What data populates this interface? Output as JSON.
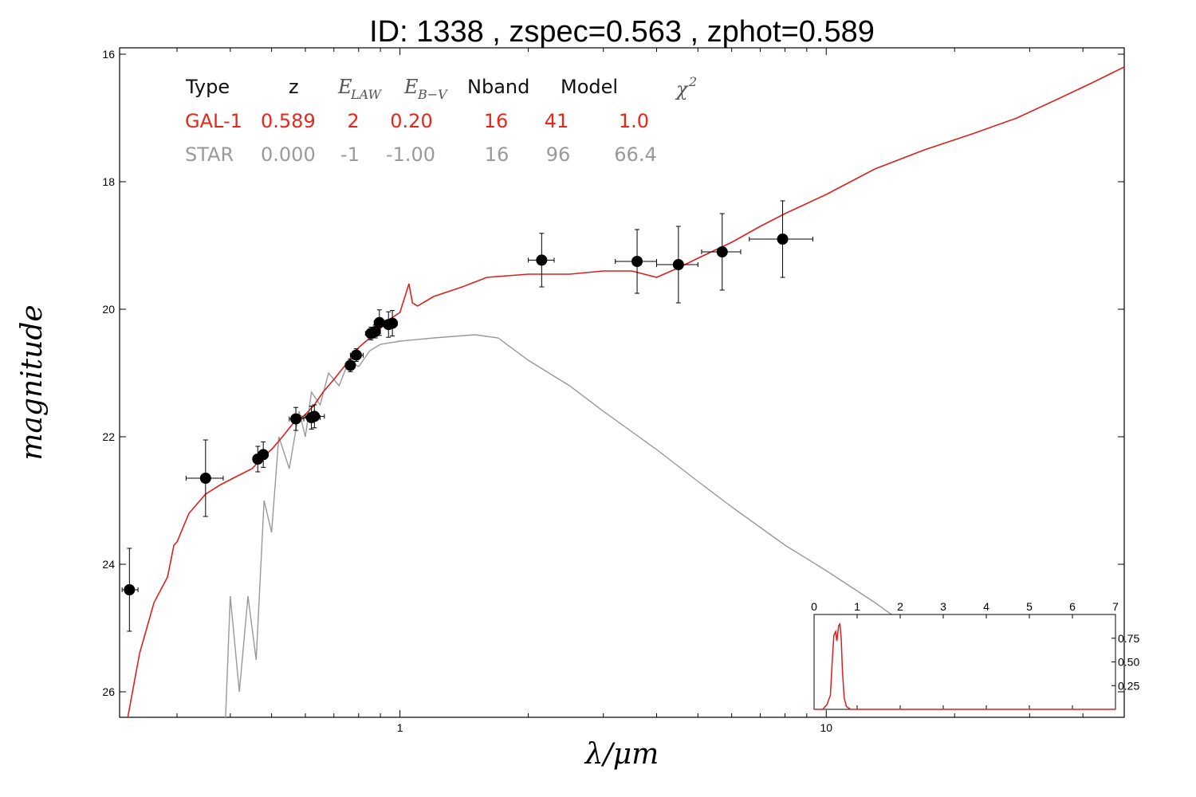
{
  "chart_data": {
    "type": "line",
    "title": "ID:  1338  , zspec=0.563 , zphot=0.589",
    "xlabel": "λ/μm",
    "ylabel": "magnitude",
    "x_scale": "log",
    "xlim": [
      0.22,
      50
    ],
    "ylim": [
      26.4,
      15.9
    ],
    "y_inverted": true,
    "yticks": [
      16,
      18,
      20,
      22,
      24,
      26
    ],
    "xticks": [
      1,
      10
    ],
    "colors": {
      "galaxy": "#d9201f",
      "star": "#999999",
      "points": "#000000"
    },
    "table": {
      "headers": {
        "type": "Type",
        "z": "z",
        "elaw": "E",
        "elaw_sub": "LAW",
        "ebv": "E",
        "ebv_sub": "B−V",
        "nband": "Nband",
        "model": "Model",
        "chi2": "χ",
        "chi2_sup": "2"
      },
      "rows": [
        {
          "type": "GAL-1",
          "z": "0.589",
          "elaw": "2",
          "ebv": "0.20",
          "nband": "16",
          "model": "41",
          "chi2": "1.0",
          "color": "#e8261a"
        },
        {
          "type": "STAR",
          "z": "0.000",
          "elaw": "-1",
          "ebv": "-1.00",
          "nband": "16",
          "model": "96",
          "chi2": "66.4",
          "color": "#9a9a9a"
        }
      ]
    },
    "series": [
      {
        "kind": "galaxy_model",
        "points": [
          [
            0.23,
            26.4
          ],
          [
            0.245,
            25.4
          ],
          [
            0.265,
            24.6
          ],
          [
            0.285,
            24.2
          ],
          [
            0.295,
            23.7
          ],
          [
            0.3,
            23.65
          ],
          [
            0.32,
            23.2
          ],
          [
            0.35,
            22.9
          ],
          [
            0.38,
            22.75
          ],
          [
            0.42,
            22.6
          ],
          [
            0.45,
            22.5
          ],
          [
            0.48,
            22.3
          ],
          [
            0.5,
            22.2
          ],
          [
            0.53,
            22.0
          ],
          [
            0.56,
            21.8
          ],
          [
            0.6,
            21.65
          ],
          [
            0.63,
            21.5
          ],
          [
            0.66,
            21.3
          ],
          [
            0.7,
            21.1
          ],
          [
            0.75,
            20.85
          ],
          [
            0.8,
            20.6
          ],
          [
            0.85,
            20.45
          ],
          [
            0.9,
            20.3
          ],
          [
            0.95,
            20.15
          ],
          [
            1.0,
            20.05
          ],
          [
            1.05,
            19.6
          ],
          [
            1.07,
            19.9
          ],
          [
            1.1,
            19.95
          ],
          [
            1.2,
            19.8
          ],
          [
            1.4,
            19.65
          ],
          [
            1.6,
            19.5
          ],
          [
            2.0,
            19.45
          ],
          [
            2.5,
            19.45
          ],
          [
            3.0,
            19.4
          ],
          [
            3.5,
            19.4
          ],
          [
            4.0,
            19.5
          ],
          [
            4.5,
            19.35
          ],
          [
            5.0,
            19.2
          ],
          [
            6.0,
            18.95
          ],
          [
            7.0,
            18.7
          ],
          [
            8.0,
            18.5
          ],
          [
            10.0,
            18.2
          ],
          [
            13.0,
            17.8
          ],
          [
            17.0,
            17.5
          ],
          [
            22.0,
            17.25
          ],
          [
            28.0,
            17.0
          ],
          [
            35.0,
            16.7
          ],
          [
            42.0,
            16.45
          ],
          [
            50.0,
            16.2
          ]
        ]
      },
      {
        "kind": "star_model",
        "points": [
          [
            0.39,
            26.4
          ],
          [
            0.4,
            24.5
          ],
          [
            0.42,
            26.0
          ],
          [
            0.44,
            24.5
          ],
          [
            0.46,
            25.5
          ],
          [
            0.48,
            23.0
          ],
          [
            0.5,
            23.5
          ],
          [
            0.52,
            22.0
          ],
          [
            0.55,
            22.5
          ],
          [
            0.58,
            21.6
          ],
          [
            0.6,
            22.0
          ],
          [
            0.62,
            21.3
          ],
          [
            0.65,
            21.5
          ],
          [
            0.68,
            21.0
          ],
          [
            0.72,
            21.2
          ],
          [
            0.76,
            20.8
          ],
          [
            0.8,
            20.9
          ],
          [
            0.85,
            20.65
          ],
          [
            0.9,
            20.55
          ],
          [
            1.0,
            20.5
          ],
          [
            1.2,
            20.45
          ],
          [
            1.5,
            20.4
          ],
          [
            1.7,
            20.45
          ],
          [
            2.0,
            20.8
          ],
          [
            2.5,
            21.2
          ],
          [
            3.0,
            21.6
          ],
          [
            4.0,
            22.2
          ],
          [
            5.0,
            22.7
          ],
          [
            6.0,
            23.1
          ],
          [
            8.0,
            23.7
          ],
          [
            10.0,
            24.1
          ],
          [
            13.0,
            24.6
          ],
          [
            15.0,
            24.9
          ]
        ]
      },
      {
        "kind": "photometry",
        "points": [
          {
            "x": 0.232,
            "y": 24.4,
            "xerr": [
              0.223,
              0.243
            ],
            "yerr": 0.65
          },
          {
            "x": 0.35,
            "y": 22.65,
            "xerr": [
              0.315,
              0.385
            ],
            "yerr": 0.6
          },
          {
            "x": 0.464,
            "y": 22.35,
            "xerr": [
              0.455,
              0.474
            ],
            "yerr": 0.2
          },
          {
            "x": 0.478,
            "y": 22.28,
            "xerr": [
              0.468,
              0.488
            ],
            "yerr": 0.2
          },
          {
            "x": 0.57,
            "y": 21.72,
            "xerr": [
              0.55,
              0.595
            ],
            "yerr": 0.18
          },
          {
            "x": 0.62,
            "y": 21.7,
            "xerr": [
              0.585,
              0.65
            ],
            "yerr": 0.18
          },
          {
            "x": 0.63,
            "y": 21.68,
            "xerr": [
              0.6,
              0.665
            ],
            "yerr": 0.18
          },
          {
            "x": 0.765,
            "y": 20.88,
            "xerr": [
              0.745,
              0.785
            ],
            "yerr": 0.1
          },
          {
            "x": 0.79,
            "y": 20.72,
            "xerr": [
              0.765,
              0.82
            ],
            "yerr": 0.1
          },
          {
            "x": 0.855,
            "y": 20.38,
            "xerr": [
              0.83,
              0.88
            ],
            "yerr": 0.1
          },
          {
            "x": 0.875,
            "y": 20.35,
            "xerr": [
              0.85,
              0.9
            ],
            "yerr": 0.1
          },
          {
            "x": 0.895,
            "y": 20.21,
            "xerr": [
              0.87,
              0.92
            ],
            "yerr": 0.2
          },
          {
            "x": 0.94,
            "y": 20.24,
            "xerr": [
              0.915,
              0.965
            ],
            "yerr": 0.2
          },
          {
            "x": 0.96,
            "y": 20.22,
            "xerr": [
              0.935,
              0.985
            ],
            "yerr": 0.2
          },
          {
            "x": 2.15,
            "y": 19.23,
            "xerr": [
              2.0,
              2.3
            ],
            "yerr": 0.42
          },
          {
            "x": 3.6,
            "y": 19.25,
            "xerr": [
              3.2,
              4.0
            ],
            "yerr": 0.5
          },
          {
            "x": 4.5,
            "y": 19.3,
            "xerr": [
              4.0,
              5.0
            ],
            "yerr": 0.6
          },
          {
            "x": 5.7,
            "y": 19.1,
            "xerr": [
              5.1,
              6.3
            ],
            "yerr": 0.6
          },
          {
            "x": 7.9,
            "y": 18.9,
            "xerr": [
              6.6,
              9.3
            ],
            "yerr": 0.6
          }
        ]
      }
    ],
    "inset": {
      "xticks": [
        "0",
        "1",
        "2",
        "3",
        "4",
        "5",
        "6",
        "7"
      ],
      "yticks": [
        "0.75",
        "0.50",
        "0.25"
      ],
      "xlim": [
        0,
        7
      ],
      "ylim": [
        0,
        1.0
      ],
      "pdf": [
        [
          0.0,
          0.0
        ],
        [
          0.2,
          0.0
        ],
        [
          0.3,
          0.05
        ],
        [
          0.38,
          0.15
        ],
        [
          0.42,
          0.5
        ],
        [
          0.46,
          0.78
        ],
        [
          0.5,
          0.82
        ],
        [
          0.53,
          0.72
        ],
        [
          0.57,
          0.88
        ],
        [
          0.6,
          0.9
        ],
        [
          0.63,
          0.75
        ],
        [
          0.66,
          0.4
        ],
        [
          0.7,
          0.12
        ],
        [
          0.75,
          0.03
        ],
        [
          0.85,
          0.0
        ],
        [
          7.0,
          0.0
        ]
      ]
    }
  }
}
